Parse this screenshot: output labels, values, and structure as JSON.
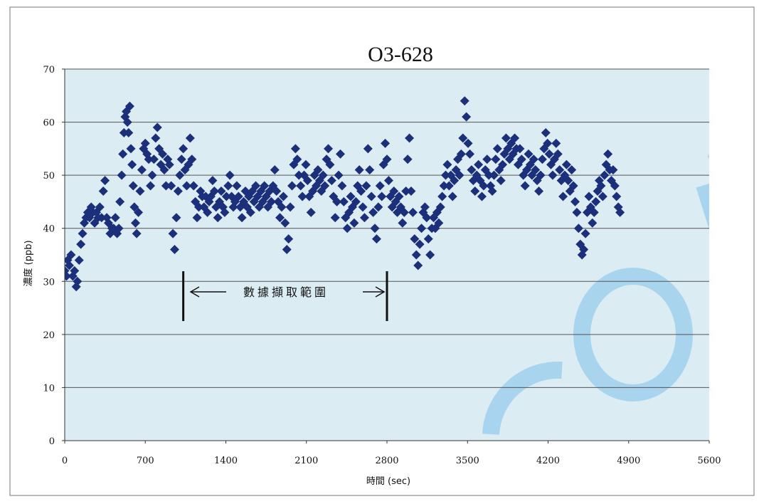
{
  "chart_data": {
    "type": "scatter",
    "title": "O3-628",
    "xlabel": "時間 (sec)",
    "ylabel": "濃度 (ppb)",
    "xlim": [
      0,
      5600
    ],
    "ylim": [
      0,
      70
    ],
    "xticks": [
      "0",
      "700",
      "1400",
      "2100",
      "2800",
      "3500",
      "4200",
      "4900",
      "5600"
    ],
    "yticks": [
      "0",
      "10",
      "20",
      "30",
      "40",
      "50",
      "60",
      "70"
    ],
    "grid": true,
    "legend": "none",
    "marker": "diamond",
    "colors": {
      "marker": "#1b2f7a",
      "plot_bg": "#dcecf3",
      "grid": "#555555",
      "watermark": "#9fd0ee"
    },
    "annotation": {
      "text": "數據擷取範圍",
      "x_start": 1030,
      "x_end": 2800
    },
    "series": [
      {
        "points": [
          [
            0,
            32
          ],
          [
            15,
            31
          ],
          [
            25,
            34
          ],
          [
            40,
            33
          ],
          [
            55,
            35
          ],
          [
            70,
            31
          ],
          [
            85,
            32
          ],
          [
            100,
            29
          ],
          [
            110,
            30
          ],
          [
            125,
            34
          ],
          [
            140,
            37
          ],
          [
            155,
            39
          ],
          [
            170,
            41
          ],
          [
            185,
            42
          ],
          [
            200,
            43
          ],
          [
            215,
            42
          ],
          [
            230,
            44
          ],
          [
            245,
            43
          ],
          [
            260,
            41
          ],
          [
            275,
            43
          ],
          [
            290,
            42
          ],
          [
            305,
            44
          ],
          [
            320,
            42
          ],
          [
            335,
            47
          ],
          [
            350,
            49
          ],
          [
            365,
            42
          ],
          [
            380,
            41
          ],
          [
            395,
            39
          ],
          [
            410,
            40
          ],
          [
            425,
            40
          ],
          [
            440,
            42
          ],
          [
            455,
            39
          ],
          [
            470,
            40
          ],
          [
            480,
            45
          ],
          [
            495,
            50
          ],
          [
            505,
            54
          ],
          [
            515,
            58
          ],
          [
            525,
            61
          ],
          [
            535,
            62
          ],
          [
            545,
            60
          ],
          [
            555,
            58
          ],
          [
            565,
            63
          ],
          [
            575,
            55
          ],
          [
            585,
            52
          ],
          [
            595,
            48
          ],
          [
            605,
            44
          ],
          [
            615,
            41
          ],
          [
            625,
            39
          ],
          [
            640,
            43
          ],
          [
            655,
            47
          ],
          [
            670,
            51
          ],
          [
            685,
            55
          ],
          [
            700,
            56
          ],
          [
            715,
            54
          ],
          [
            730,
            53
          ],
          [
            745,
            48
          ],
          [
            760,
            50
          ],
          [
            775,
            53
          ],
          [
            790,
            57
          ],
          [
            805,
            59
          ],
          [
            820,
            55
          ],
          [
            835,
            52
          ],
          [
            850,
            54
          ],
          [
            865,
            51
          ],
          [
            880,
            48
          ],
          [
            895,
            53
          ],
          [
            910,
            52
          ],
          [
            925,
            48
          ],
          [
            940,
            39
          ],
          [
            955,
            36
          ],
          [
            970,
            42
          ],
          [
            985,
            47
          ],
          [
            1000,
            50
          ],
          [
            1015,
            53
          ],
          [
            1030,
            55
          ],
          [
            1045,
            51
          ],
          [
            1060,
            48
          ],
          [
            1075,
            52
          ],
          [
            1090,
            57
          ],
          [
            1105,
            53
          ],
          [
            1120,
            48
          ],
          [
            1135,
            45
          ],
          [
            1150,
            42
          ],
          [
            1165,
            44
          ],
          [
            1180,
            47
          ],
          [
            1195,
            46
          ],
          [
            1210,
            44
          ],
          [
            1225,
            46
          ],
          [
            1240,
            43
          ],
          [
            1255,
            45
          ],
          [
            1270,
            46
          ],
          [
            1285,
            49
          ],
          [
            1300,
            47
          ],
          [
            1315,
            44
          ],
          [
            1330,
            42
          ],
          [
            1345,
            45
          ],
          [
            1360,
            47
          ],
          [
            1375,
            44
          ],
          [
            1390,
            43
          ],
          [
            1405,
            46
          ],
          [
            1420,
            48
          ],
          [
            1435,
            50
          ],
          [
            1450,
            46
          ],
          [
            1465,
            44
          ],
          [
            1480,
            45
          ],
          [
            1495,
            48
          ],
          [
            1510,
            46
          ],
          [
            1525,
            44
          ],
          [
            1540,
            42
          ],
          [
            1555,
            45
          ],
          [
            1570,
            47
          ],
          [
            1585,
            44
          ],
          [
            1600,
            46
          ],
          [
            1615,
            43
          ],
          [
            1630,
            47
          ],
          [
            1645,
            45
          ],
          [
            1660,
            48
          ],
          [
            1675,
            46
          ],
          [
            1690,
            44
          ],
          [
            1705,
            47
          ],
          [
            1720,
            45
          ],
          [
            1735,
            48
          ],
          [
            1750,
            46
          ],
          [
            1765,
            44
          ],
          [
            1780,
            47
          ],
          [
            1795,
            45
          ],
          [
            1810,
            48
          ],
          [
            1825,
            51
          ],
          [
            1840,
            47
          ],
          [
            1855,
            45
          ],
          [
            1870,
            42
          ],
          [
            1885,
            44
          ],
          [
            1900,
            46
          ],
          [
            1915,
            41
          ],
          [
            1930,
            36
          ],
          [
            1945,
            38
          ],
          [
            1960,
            44
          ],
          [
            1975,
            48
          ],
          [
            1990,
            52
          ],
          [
            2005,
            55
          ],
          [
            2020,
            53
          ],
          [
            2035,
            50
          ],
          [
            2050,
            48
          ],
          [
            2065,
            46
          ],
          [
            2080,
            50
          ],
          [
            2095,
            52
          ],
          [
            2110,
            49
          ],
          [
            2125,
            46
          ],
          [
            2140,
            43
          ],
          [
            2155,
            47
          ],
          [
            2170,
            50
          ],
          [
            2185,
            48
          ],
          [
            2200,
            51
          ],
          [
            2215,
            49
          ],
          [
            2230,
            47
          ],
          [
            2245,
            50
          ],
          [
            2260,
            48
          ],
          [
            2275,
            53
          ],
          [
            2290,
            55
          ],
          [
            2305,
            52
          ],
          [
            2320,
            49
          ],
          [
            2335,
            46
          ],
          [
            2350,
            42
          ],
          [
            2365,
            45
          ],
          [
            2380,
            50
          ],
          [
            2395,
            54
          ],
          [
            2410,
            48
          ],
          [
            2425,
            45
          ],
          [
            2440,
            42
          ],
          [
            2455,
            40
          ],
          [
            2470,
            43
          ],
          [
            2485,
            46
          ],
          [
            2500,
            44
          ],
          [
            2515,
            41
          ],
          [
            2530,
            45
          ],
          [
            2545,
            48
          ],
          [
            2560,
            51
          ],
          [
            2575,
            47
          ],
          [
            2590,
            44
          ],
          [
            2605,
            42
          ],
          [
            2620,
            48
          ],
          [
            2635,
            55
          ],
          [
            2650,
            51
          ],
          [
            2665,
            46
          ],
          [
            2680,
            43
          ],
          [
            2695,
            40
          ],
          [
            2710,
            38
          ],
          [
            2725,
            44
          ],
          [
            2740,
            48
          ],
          [
            2755,
            46
          ],
          [
            2770,
            52
          ],
          [
            2785,
            56
          ],
          [
            2800,
            53
          ],
          [
            2815,
            49
          ],
          [
            2830,
            46
          ],
          [
            2845,
            44
          ],
          [
            2860,
            47
          ],
          [
            2875,
            45
          ],
          [
            2890,
            43
          ],
          [
            2905,
            46
          ],
          [
            2920,
            44
          ],
          [
            2935,
            41
          ],
          [
            2950,
            43
          ],
          [
            2965,
            47
          ],
          [
            2980,
            53
          ],
          [
            2995,
            57
          ],
          [
            3010,
            47
          ],
          [
            3025,
            43
          ],
          [
            3040,
            38
          ],
          [
            3055,
            35
          ],
          [
            3070,
            33
          ],
          [
            3085,
            37
          ],
          [
            3100,
            40
          ],
          [
            3115,
            43
          ],
          [
            3130,
            44
          ],
          [
            3145,
            42
          ],
          [
            3160,
            38
          ],
          [
            3175,
            35
          ],
          [
            3190,
            40
          ],
          [
            3205,
            42
          ],
          [
            3220,
            40
          ],
          [
            3235,
            43
          ],
          [
            3250,
            41
          ],
          [
            3265,
            44
          ],
          [
            3280,
            46
          ],
          [
            3295,
            48
          ],
          [
            3310,
            50
          ],
          [
            3325,
            52
          ],
          [
            3340,
            48
          ],
          [
            3355,
            50
          ],
          [
            3370,
            46
          ],
          [
            3385,
            49
          ],
          [
            3400,
            51
          ],
          [
            3415,
            53
          ],
          [
            3430,
            50
          ],
          [
            3445,
            54
          ],
          [
            3460,
            57
          ],
          [
            3475,
            64
          ],
          [
            3490,
            61
          ],
          [
            3505,
            56
          ],
          [
            3520,
            54
          ],
          [
            3535,
            51
          ],
          [
            3550,
            49
          ],
          [
            3565,
            47
          ],
          [
            3580,
            50
          ],
          [
            3595,
            52
          ],
          [
            3610,
            49
          ],
          [
            3625,
            46
          ],
          [
            3640,
            48
          ],
          [
            3655,
            51
          ],
          [
            3670,
            53
          ],
          [
            3685,
            50
          ],
          [
            3700,
            48
          ],
          [
            3715,
            47
          ],
          [
            3730,
            50
          ],
          [
            3745,
            53
          ],
          [
            3760,
            55
          ],
          [
            3775,
            51
          ],
          [
            3790,
            49
          ],
          [
            3805,
            52
          ],
          [
            3820,
            54
          ],
          [
            3835,
            57
          ],
          [
            3850,
            55
          ],
          [
            3865,
            53
          ],
          [
            3880,
            56
          ],
          [
            3895,
            54
          ],
          [
            3910,
            57
          ],
          [
            3925,
            55
          ],
          [
            3940,
            52
          ],
          [
            3955,
            55
          ],
          [
            3970,
            53
          ],
          [
            3985,
            50
          ],
          [
            4000,
            48
          ],
          [
            4015,
            51
          ],
          [
            4030,
            54
          ],
          [
            4045,
            52
          ],
          [
            4060,
            50
          ],
          [
            4075,
            53
          ],
          [
            4090,
            51
          ],
          [
            4105,
            49
          ],
          [
            4120,
            47
          ],
          [
            4135,
            50
          ],
          [
            4150,
            53
          ],
          [
            4165,
            55
          ],
          [
            4180,
            58
          ],
          [
            4195,
            56
          ],
          [
            4210,
            54
          ],
          [
            4225,
            52
          ],
          [
            4240,
            50
          ],
          [
            4255,
            53
          ],
          [
            4270,
            56
          ],
          [
            4285,
            54
          ],
          [
            4300,
            51
          ],
          [
            4315,
            49
          ],
          [
            4330,
            46
          ],
          [
            4345,
            50
          ],
          [
            4360,
            52
          ],
          [
            4375,
            49
          ],
          [
            4390,
            47
          ],
          [
            4405,
            51
          ],
          [
            4420,
            48
          ],
          [
            4435,
            45
          ],
          [
            4450,
            43
          ],
          [
            4465,
            40
          ],
          [
            4480,
            37
          ],
          [
            4495,
            35
          ],
          [
            4510,
            36
          ],
          [
            4525,
            39
          ],
          [
            4540,
            43
          ],
          [
            4555,
            46
          ],
          [
            4570,
            44
          ],
          [
            4585,
            41
          ],
          [
            4600,
            43
          ],
          [
            4615,
            45
          ],
          [
            4630,
            47
          ],
          [
            4645,
            49
          ],
          [
            4660,
            48
          ],
          [
            4675,
            46
          ],
          [
            4690,
            50
          ],
          [
            4705,
            52
          ],
          [
            4720,
            54
          ],
          [
            4735,
            51
          ],
          [
            4750,
            49
          ],
          [
            4765,
            51
          ],
          [
            4780,
            48
          ],
          [
            4795,
            46
          ],
          [
            4810,
            44
          ],
          [
            4825,
            43
          ]
        ]
      }
    ]
  }
}
